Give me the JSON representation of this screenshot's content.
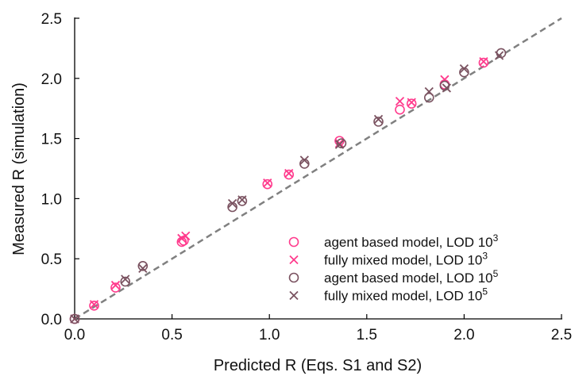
{
  "chart_data": {
    "type": "scatter",
    "xlabel": "Predicted R (Eqs. S1 and S2)",
    "ylabel": "Measured R (simulation)",
    "xlim": [
      0.0,
      2.5
    ],
    "ylim": [
      0.0,
      2.5
    ],
    "xticks": [
      0.0,
      0.5,
      1.0,
      1.5,
      2.0,
      2.5
    ],
    "yticks": [
      0.0,
      0.5,
      1.0,
      1.5,
      2.0,
      2.5
    ],
    "xtick_labels": [
      "0.0",
      "0.5",
      "1.0",
      "1.5",
      "2.0",
      "2.5"
    ],
    "ytick_labels": [
      "0.0",
      "0.5",
      "1.0",
      "1.5",
      "2.0",
      "2.5"
    ],
    "grid": false,
    "legend_position": "bottom-right",
    "reference_line": {
      "style": "dashed",
      "color": "#808080",
      "points": [
        [
          0,
          0
        ],
        [
          2.5,
          2.5
        ]
      ]
    },
    "series": [
      {
        "name": "agent based model, LOD 10",
        "name_superscript": "3",
        "marker": "circle",
        "color": "#ff3b8d",
        "x": [
          0.0,
          0.1,
          0.21,
          0.56,
          0.55,
          0.99,
          1.1,
          1.36,
          1.67,
          1.73,
          1.9,
          2.1
        ],
        "y": [
          0.0,
          0.11,
          0.26,
          0.65,
          0.64,
          1.12,
          1.2,
          1.48,
          1.74,
          1.79,
          1.95,
          2.13
        ]
      },
      {
        "name": "fully mixed model, LOD 10",
        "name_superscript": "3",
        "marker": "x",
        "color": "#ff3b8d",
        "x": [
          0.0,
          0.1,
          0.21,
          0.55,
          0.57,
          0.99,
          1.1,
          1.36,
          1.67,
          1.73,
          1.9,
          2.1
        ],
        "y": [
          0.0,
          0.12,
          0.28,
          0.67,
          0.69,
          1.13,
          1.21,
          1.46,
          1.81,
          1.8,
          1.99,
          2.14
        ]
      },
      {
        "name": "agent based model, LOD 10",
        "name_superscript": "5",
        "marker": "circle",
        "color": "#7a5260",
        "x": [
          0.0,
          0.26,
          0.35,
          0.81,
          0.86,
          1.18,
          1.37,
          1.56,
          1.82,
          1.9,
          2.0,
          2.19
        ],
        "y": [
          0.0,
          0.31,
          0.44,
          0.93,
          0.98,
          1.29,
          1.46,
          1.64,
          1.84,
          1.94,
          2.05,
          2.21
        ]
      },
      {
        "name": "fully mixed model, LOD 10",
        "name_superscript": "5",
        "marker": "x",
        "color": "#7a5260",
        "x": [
          0.0,
          0.26,
          0.35,
          0.81,
          0.86,
          1.18,
          1.36,
          1.56,
          1.82,
          1.91,
          2.0,
          2.18
        ],
        "y": [
          0.0,
          0.33,
          0.42,
          0.96,
          0.99,
          1.32,
          1.45,
          1.66,
          1.89,
          1.92,
          2.08,
          2.19
        ]
      }
    ]
  }
}
